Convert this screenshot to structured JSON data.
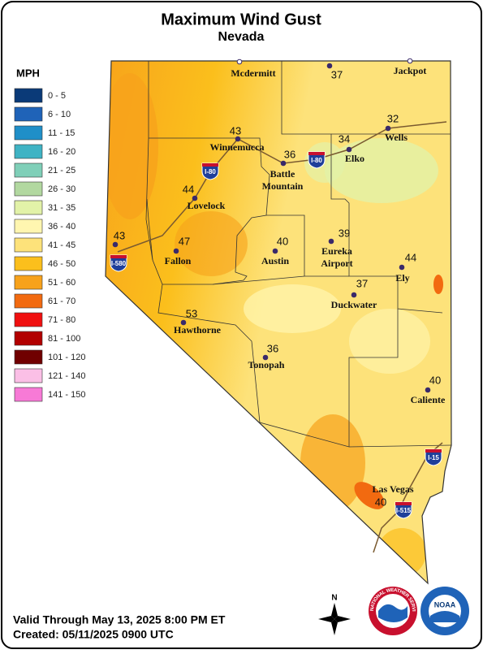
{
  "header": {
    "title": "Maximum Wind Gust",
    "subtitle": "Nevada"
  },
  "legend": {
    "title": "MPH",
    "items": [
      {
        "label": "0 - 5",
        "color": "#0a3a78"
      },
      {
        "label": "6 - 10",
        "color": "#1f63b8"
      },
      {
        "label": "11 - 15",
        "color": "#1f8fc8"
      },
      {
        "label": "16 - 20",
        "color": "#3fb3c4"
      },
      {
        "label": "21 - 25",
        "color": "#7fcfb8"
      },
      {
        "label": "26 - 30",
        "color": "#b2d8a0"
      },
      {
        "label": "31 - 35",
        "color": "#e2f2a8"
      },
      {
        "label": "36 - 40",
        "color": "#fff6b0"
      },
      {
        "label": "41 - 45",
        "color": "#fde27a"
      },
      {
        "label": "46 - 50",
        "color": "#fbbf1c"
      },
      {
        "label": "51 - 60",
        "color": "#f7a21b"
      },
      {
        "label": "61 - 70",
        "color": "#f26a10"
      },
      {
        "label": "71 - 80",
        "color": "#f01010"
      },
      {
        "label": "81 - 100",
        "color": "#b20000"
      },
      {
        "label": "101 - 120",
        "color": "#700000"
      },
      {
        "label": "121 - 140",
        "color": "#fbbfe6"
      },
      {
        "label": "141 - 150",
        "color": "#f77ad6"
      }
    ]
  },
  "cities": [
    {
      "name": "Mcdermitt"
    },
    {
      "value": 37
    },
    {
      "name": "Jackpot"
    },
    {
      "name": "Winnemucca",
      "value": 43
    },
    {
      "name": [
        "Battle",
        "Mountain"
      ],
      "value": 36
    },
    {
      "name": "Elko",
      "value": 34
    },
    {
      "name": "Wells",
      "value": 32
    },
    {
      "name": "Lovelock",
      "value": 44
    },
    {
      "value": 43
    },
    {
      "name": "Fallon",
      "value": 47
    },
    {
      "name": "Austin",
      "value": 40
    },
    {
      "name": [
        "Eureka",
        "Airport"
      ],
      "value": 39
    },
    {
      "name": "Ely",
      "value": 44
    },
    {
      "name": "Duckwater",
      "value": 37
    },
    {
      "name": "Hawthorne",
      "value": 53
    },
    {
      "name": "Tonopah",
      "value": 36
    },
    {
      "name": "Caliente",
      "value": 40
    },
    {
      "name": "Las Vegas",
      "value": 40
    }
  ],
  "interstates": [
    "I-80",
    "I-80",
    "I-580",
    "I-15",
    "I-515"
  ],
  "footer": {
    "valid": "Valid Through May 13, 2025 8:00 PM ET",
    "created": "Created: 05/11/2025 0900 UTC"
  },
  "logos": {
    "compass": "N",
    "nws": "NATIONAL WEATHER SERVICE",
    "noaa": "NOAA"
  }
}
